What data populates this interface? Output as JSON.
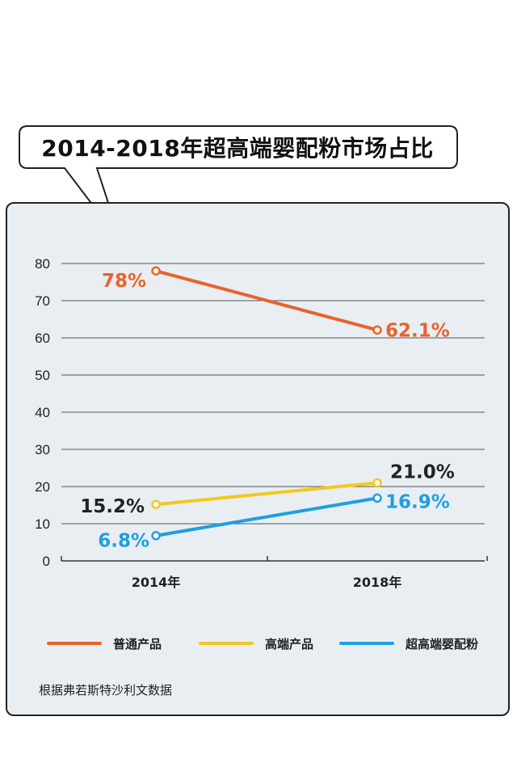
{
  "title": "2014-2018年超高端婴配粉市场占比",
  "source": "根据弗若斯特沙利文数据",
  "colors": {
    "orange": "#e8632a",
    "yellow": "#f2c81e",
    "blue": "#1f9fe0"
  },
  "chart_data": {
    "type": "line",
    "title": "2014-2018年超高端婴配粉市场占比",
    "categories": [
      "2014年",
      "2018年"
    ],
    "ylim": [
      0,
      80
    ],
    "yticks": [
      0,
      10,
      20,
      30,
      40,
      50,
      60,
      70,
      80
    ],
    "grid": true,
    "legend_position": "bottom",
    "series": [
      {
        "name": "普通产品",
        "values": [
          78,
          62.1
        ],
        "labels": [
          "78%",
          "62.1%"
        ],
        "color": "#e8632a"
      },
      {
        "name": "高端产品",
        "values": [
          15.2,
          21.0
        ],
        "labels": [
          "15.2%",
          "21.0%"
        ],
        "color": "#f2c81e"
      },
      {
        "name": "超高端婴配粉",
        "values": [
          6.8,
          16.9
        ],
        "labels": [
          "6.8%",
          "16.9%"
        ],
        "color": "#1f9fe0"
      }
    ]
  }
}
